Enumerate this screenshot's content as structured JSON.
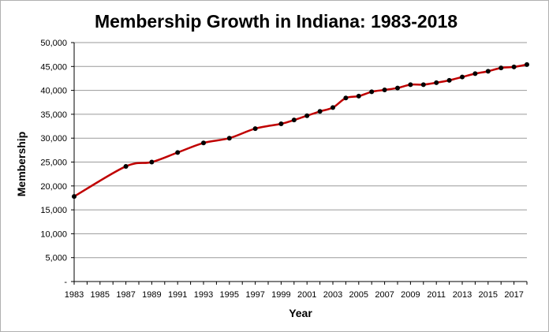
{
  "chart_data": {
    "type": "line",
    "title": "Membership Growth in Indiana: 1983-2018",
    "xlabel": "Year",
    "ylabel": "Membership",
    "xlim": [
      1983,
      2018
    ],
    "ylim": [
      0,
      50000
    ],
    "x_ticks": [
      1983,
      1985,
      1987,
      1989,
      1991,
      1993,
      1995,
      1997,
      1999,
      2001,
      2003,
      2005,
      2007,
      2009,
      2011,
      2013,
      2015,
      2017
    ],
    "y_ticks": [
      0,
      5000,
      10000,
      15000,
      20000,
      25000,
      30000,
      35000,
      40000,
      45000,
      50000
    ],
    "y_tick_labels": [
      "-",
      "5,000",
      "10,000",
      "15,000",
      "20,000",
      "25,000",
      "30,000",
      "35,000",
      "40,000",
      "45,000",
      "50,000"
    ],
    "grid": true,
    "series": [
      {
        "color": "#c00000",
        "marker_color": "#000000",
        "x": [
          1983,
          1987,
          1989,
          1991,
          1993,
          1995,
          1997,
          1999,
          2000,
          2001,
          2002,
          2003,
          2004,
          2005,
          2006,
          2007,
          2008,
          2009,
          2010,
          2011,
          2012,
          2013,
          2014,
          2015,
          2016,
          2017,
          2018
        ],
        "y": [
          17800,
          24100,
          25000,
          27000,
          29000,
          30000,
          32000,
          33000,
          33800,
          34700,
          35600,
          36400,
          38400,
          38800,
          39700,
          40100,
          40500,
          41200,
          41200,
          41600,
          42100,
          42800,
          43500,
          44000,
          44700,
          44900,
          45400
        ]
      }
    ]
  }
}
